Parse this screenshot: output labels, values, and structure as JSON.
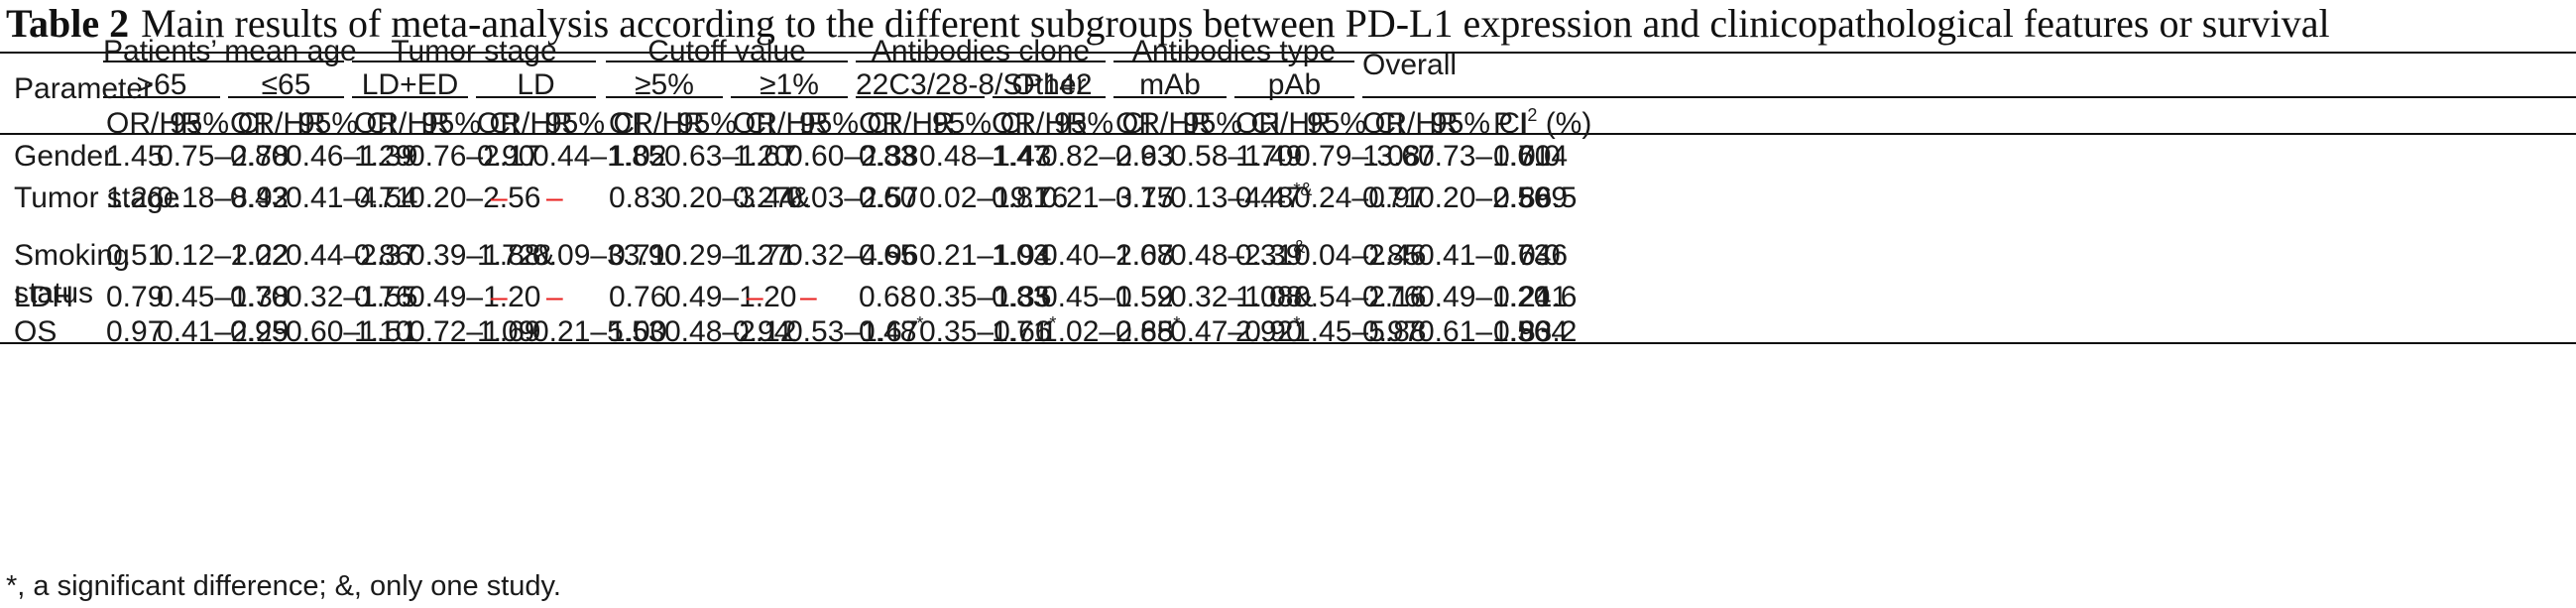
{
  "caption": {
    "label": "Table 2",
    "text": "Main results of meta-analysis according to the different subgroups between PD-L1 expression and clinicopathological features or survival"
  },
  "header": {
    "parameter": "Parameter",
    "overall": "Overall",
    "groups": [
      {
        "label": "Patients’ mean age",
        "subs": [
          ">65",
          "≤65"
        ]
      },
      {
        "label": "Tumor stage",
        "subs": [
          "LD+ED",
          "LD"
        ]
      },
      {
        "label": "Cutoff value",
        "subs": [
          "≥5%",
          "≥1%"
        ]
      },
      {
        "label": "Antibodies clone",
        "subs": [
          "22C3/28-8/SP142",
          "Other"
        ]
      },
      {
        "label": "Antibodies type",
        "subs": [
          "mAb",
          "pAb"
        ]
      }
    ],
    "or_hr": "OR/HR",
    "ci": "95% CI",
    "p": "P",
    "i2": "I",
    "i2_sup": "2",
    "i2_unit": "(%)"
  },
  "rows": [
    {
      "param": "Gender",
      "param2": "",
      "cells": [
        {
          "v": "1.45"
        },
        {
          "v": "0.75–2.78"
        },
        {
          "v": "0.80"
        },
        {
          "v": "0.46–1.39"
        },
        {
          "v": "1.29"
        },
        {
          "v": "0.76–2.17"
        },
        {
          "v": "0.90"
        },
        {
          "v": "0.44–1.85"
        },
        {
          "v": "1.02"
        },
        {
          "v": "0.63–1.67"
        },
        {
          "v": "1.20"
        },
        {
          "v": "0.60–2.38"
        },
        {
          "v": "0.83"
        },
        {
          "v": "0.48–1.43"
        },
        {
          "v": "1.47"
        },
        {
          "v": "0.82–2.63"
        },
        {
          "v": "0.93"
        },
        {
          "v": "0.58–1.49"
        },
        {
          "v": "1.70"
        },
        {
          "v": "0.79–.3.67"
        },
        {
          "v": "1.08"
        },
        {
          "v": "0.73–1.61"
        },
        {
          "v": "0.704"
        },
        {
          "v": "0.0"
        }
      ]
    },
    {
      "param": "Tumor stage",
      "param2": "",
      "cells": [
        {
          "v": "1.26"
        },
        {
          "v": "0.18–8.92"
        },
        {
          "v": "0.43"
        },
        {
          "v": "0.41–4.54"
        },
        {
          "v": "0.71"
        },
        {
          "v": "0.20–2.56"
        },
        {
          "v": "–",
          "red": true
        },
        {
          "v": "–",
          "red": true
        },
        {
          "v": "0.83"
        },
        {
          "v": "0.20–3.44"
        },
        {
          "v": "0.27&"
        },
        {
          "v": "0.03–2.57"
        },
        {
          "v": "0.60"
        },
        {
          "v": "0.02–19.76"
        },
        {
          "v": "0.81"
        },
        {
          "v": "0.21–3.15"
        },
        {
          "v": "0.77"
        },
        {
          "v": "0.13–4.47"
        },
        {
          "v": "0.48",
          "sup": "*&"
        },
        {
          "v": "0.24–0.97"
        },
        {
          "v": "0.71"
        },
        {
          "v": "0.20–2.56"
        },
        {
          "v": "0.599"
        },
        {
          "v": "86.5"
        }
      ]
    },
    {
      "param": "Smoking",
      "param2": "status",
      "cells": [
        {
          "v": "0.51"
        },
        {
          "v": "0.12–2.22"
        },
        {
          "v": "1.02"
        },
        {
          "v": "0.44–2.37"
        },
        {
          "v": "0.86"
        },
        {
          "v": "0.39–1.88"
        },
        {
          "v": "1.72&"
        },
        {
          "v": "0.09–33.90"
        },
        {
          "v": "0.71"
        },
        {
          "v": "0.29–1.71"
        },
        {
          "v": "1.27"
        },
        {
          "v": "0.32–4.96"
        },
        {
          "v": "0.65"
        },
        {
          "v": "0.21–1.94"
        },
        {
          "v": "1.03"
        },
        {
          "v": "0.40–2.68"
        },
        {
          "v": "1.07"
        },
        {
          "v": "0.48–2.39"
        },
        {
          "v": "0.31",
          "sup": "&"
        },
        {
          "v": "0.04–2.46"
        },
        {
          "v": "0.85"
        },
        {
          "v": "0.41–1.73"
        },
        {
          "v": "0.646"
        },
        {
          "v": "0.0"
        }
      ]
    },
    {
      "param": "LDH",
      "param2": "",
      "cells": [
        {
          "v": "0.79"
        },
        {
          "v": "0.45–1.38"
        },
        {
          "v": "0.70"
        },
        {
          "v": "0.32–1.55"
        },
        {
          "v": "0.76"
        },
        {
          "v": "0.49–1.20"
        },
        {
          "v": "–",
          "red": true
        },
        {
          "v": "–",
          "red": true
        },
        {
          "v": "0.76"
        },
        {
          "v": "0.49–1.20"
        },
        {
          "v": "–",
          "red": true
        },
        {
          "v": "–",
          "red": true
        },
        {
          "v": "0.68"
        },
        {
          "v": "0.35–1.35"
        },
        {
          "v": "0.83"
        },
        {
          "v": "0.45–1.52"
        },
        {
          "v": "0.59"
        },
        {
          "v": "0.32–1.08"
        },
        {
          "v": "1.08&"
        },
        {
          "v": "0.54–2.16"
        },
        {
          "v": "0.76"
        },
        {
          "v": "0.49–1.20"
        },
        {
          "v": "0.241"
        },
        {
          "v": "21.6"
        }
      ]
    },
    {
      "param": "OS",
      "param2": "",
      "cells": [
        {
          "v": "0.97"
        },
        {
          "v": "0.41–2.29"
        },
        {
          "v": "0.95"
        },
        {
          "v": "0.60–1.51"
        },
        {
          "v": "1.10"
        },
        {
          "v": "0.72–1.69"
        },
        {
          "v": "1.09"
        },
        {
          "v": "0.21–5.53"
        },
        {
          "v": "1.00"
        },
        {
          "v": "0.48–2.12"
        },
        {
          "v": "0.94"
        },
        {
          "v": "0.53–1.67"
        },
        {
          "v": "0.48",
          "sup": "*"
        },
        {
          "v": "0.35–0.66"
        },
        {
          "v": "1.71",
          "sup": "*"
        },
        {
          "v": "1.02–2.88"
        },
        {
          "v": "0.65",
          "sup": "*"
        },
        {
          "v": "0.47–0.90"
        },
        {
          "v": "2.92",
          "sup": "*"
        },
        {
          "v": "1.45–5.88"
        },
        {
          "v": "0.97"
        },
        {
          "v": "0.61–1.56"
        },
        {
          "v": "0.904"
        },
        {
          "v": "83.2"
        }
      ]
    }
  ],
  "footnote": {
    "sig_mark": "*",
    "sig_text": ", a significant difference; ",
    "single_mark": "&",
    "single_text": ", only one study."
  },
  "colors": {
    "text": "#1a1a1a",
    "rule": "#111111",
    "dash": "#e8201f"
  }
}
